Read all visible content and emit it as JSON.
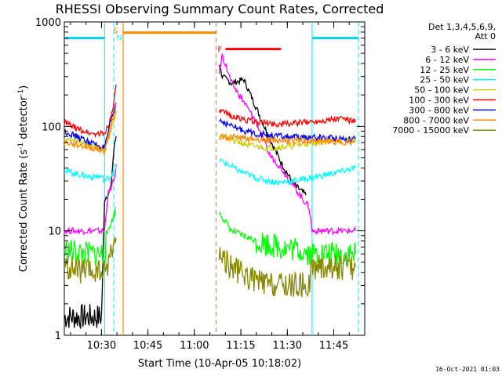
{
  "chart_data": {
    "type": "line",
    "title": "RHESSI Observing Summary Count Rates, Corrected",
    "xlabel": "Start Time (10-Apr-05 10:18:02)",
    "ylabel_parts": [
      "Corrected Count Rate (s",
      "-1",
      " detector",
      "-1",
      ")"
    ],
    "yscale": "log",
    "ylim": [
      1,
      1000
    ],
    "xlim": [
      "10:18",
      "11:55"
    ],
    "x_ticks": [
      "10:30",
      "10:45",
      "11:00",
      "11:15",
      "11:30",
      "11:45"
    ],
    "y_ticks": [
      "1",
      "10",
      "100",
      "1000"
    ],
    "legend_header": [
      "Det 1,3,4,5,6,9,",
      "Att 0"
    ],
    "legend_placement": "right",
    "series": [
      {
        "name": "3 - 6 keV",
        "color": "#000000",
        "x": [
          "10:18",
          "10:25",
          "10:30",
          "10:31",
          "10:33",
          "10:34",
          "10:35",
          "11:08",
          "11:09",
          "11:12",
          "11:16",
          "11:20",
          "11:24",
          "11:28",
          "11:32",
          "11:36"
        ],
        "values": [
          1.5,
          1.5,
          1.5,
          20,
          25,
          60,
          90,
          400,
          300,
          260,
          280,
          150,
          80,
          45,
          28,
          22
        ]
      },
      {
        "name": "6 - 12 keV",
        "color": "#ff00ff",
        "x": [
          "10:18",
          "10:25",
          "10:31",
          "10:32",
          "10:34",
          "10:35",
          "11:08",
          "11:09",
          "11:12",
          "11:16",
          "11:20",
          "11:24",
          "11:28",
          "11:32",
          "11:35",
          "11:37",
          "11:38",
          "11:50",
          "11:52"
        ],
        "values": [
          10,
          10,
          10,
          22,
          30,
          45,
          330,
          480,
          260,
          170,
          110,
          55,
          40,
          27,
          20,
          17,
          10,
          10,
          10
        ]
      },
      {
        "name": "12 - 25 keV",
        "color": "#00ff00",
        "x": [
          "10:18",
          "10:25",
          "10:31",
          "10:32",
          "10:34",
          "10:35",
          "11:08",
          "11:12",
          "11:20",
          "11:28",
          "11:35",
          "11:38",
          "11:45",
          "11:52"
        ],
        "values": [
          6.5,
          6,
          6,
          10,
          14,
          18,
          15,
          10,
          8,
          7,
          6.5,
          6,
          6,
          6
        ]
      },
      {
        "name": "25 - 50 keV",
        "color": "#00ffff",
        "x": [
          "10:18",
          "10:22",
          "10:26",
          "10:30",
          "10:31",
          "10:33",
          "10:35",
          "11:08",
          "11:14",
          "11:20",
          "11:27",
          "11:32",
          "11:37",
          "11:44",
          "11:52"
        ],
        "values": [
          38,
          35,
          33,
          33,
          30,
          34,
          40,
          48,
          38,
          32,
          29,
          30,
          32,
          35,
          40
        ]
      },
      {
        "name": "50 - 100 keV",
        "color": "#cccc00",
        "x": [
          "10:18",
          "10:24",
          "10:31",
          "10:33",
          "10:35",
          "11:08",
          "11:12",
          "11:18",
          "11:24",
          "11:30",
          "11:36",
          "11:44",
          "11:52"
        ],
        "values": [
          75,
          70,
          60,
          90,
          150,
          85,
          75,
          65,
          62,
          64,
          68,
          72,
          75
        ]
      },
      {
        "name": "100 - 300 keV",
        "color": "#ff0000",
        "x": [
          "10:18",
          "10:22",
          "10:27",
          "10:31",
          "10:33",
          "10:35",
          "11:08",
          "11:14",
          "11:20",
          "11:27",
          "11:34",
          "11:42",
          "11:48",
          "11:52"
        ],
        "values": [
          110,
          95,
          85,
          85,
          120,
          260,
          140,
          120,
          110,
          105,
          108,
          115,
          120,
          110
        ]
      },
      {
        "name": "300 - 800 keV",
        "color": "#0000ff",
        "x": [
          "10:18",
          "10:24",
          "10:31",
          "10:33",
          "10:35",
          "11:08",
          "11:14",
          "11:20",
          "11:28",
          "11:36",
          "11:44",
          "11:52"
        ],
        "values": [
          90,
          75,
          62,
          110,
          180,
          115,
          95,
          85,
          80,
          78,
          78,
          75
        ]
      },
      {
        "name": "800 - 7000 keV",
        "color": "#ff8800",
        "x": [
          "10:18",
          "10:24",
          "10:31",
          "10:33",
          "10:35",
          "11:08",
          "11:14",
          "11:20",
          "11:28",
          "11:36",
          "11:44",
          "11:52"
        ],
        "values": [
          70,
          65,
          58,
          100,
          170,
          80,
          78,
          75,
          73,
          72,
          72,
          70
        ]
      },
      {
        "name": "7000 - 15000 keV",
        "color": "#888800",
        "x": [
          "10:18",
          "10:25",
          "10:31",
          "10:33",
          "10:35",
          "11:08",
          "11:12",
          "11:18",
          "11:24",
          "11:30",
          "11:37",
          "11:38",
          "11:45",
          "11:52"
        ],
        "values": [
          4.5,
          4,
          4,
          6,
          9,
          6,
          4.5,
          3.5,
          3,
          3,
          3,
          4.5,
          4.5,
          4.5
        ]
      }
    ],
    "flags": [
      {
        "label": "",
        "color": "#00ccff",
        "x1": "10:18",
        "x2": "10:31",
        "value": 700
      },
      {
        "label": "S",
        "color": "#ff8800",
        "x1": "10:37",
        "x2": "11:07",
        "value": 790
      },
      {
        "label": "F",
        "color": "#ff0000",
        "x1": "11:10",
        "x2": "11:28",
        "value": 550
      },
      {
        "label": "",
        "color": "#00ccff",
        "x1": "11:38",
        "x2": "11:53",
        "value": 700
      }
    ],
    "flag_letter_n": "N",
    "vertical_markers": [
      {
        "x": "10:31",
        "color": "#00ffff",
        "style": "solid"
      },
      {
        "x": "10:34",
        "color": "#00ffff",
        "style": "dashed"
      },
      {
        "x": "10:37",
        "color": "#ff8800",
        "style": "solid"
      },
      {
        "x": "11:07",
        "color": "#ff8800",
        "style": "dashed"
      },
      {
        "x": "11:38",
        "color": "#00ffff",
        "style": "solid"
      },
      {
        "x": "11:53",
        "color": "#00ffff",
        "style": "dashed"
      }
    ]
  },
  "footer": {
    "timestamp": "16-Oct-2021 01:03"
  }
}
